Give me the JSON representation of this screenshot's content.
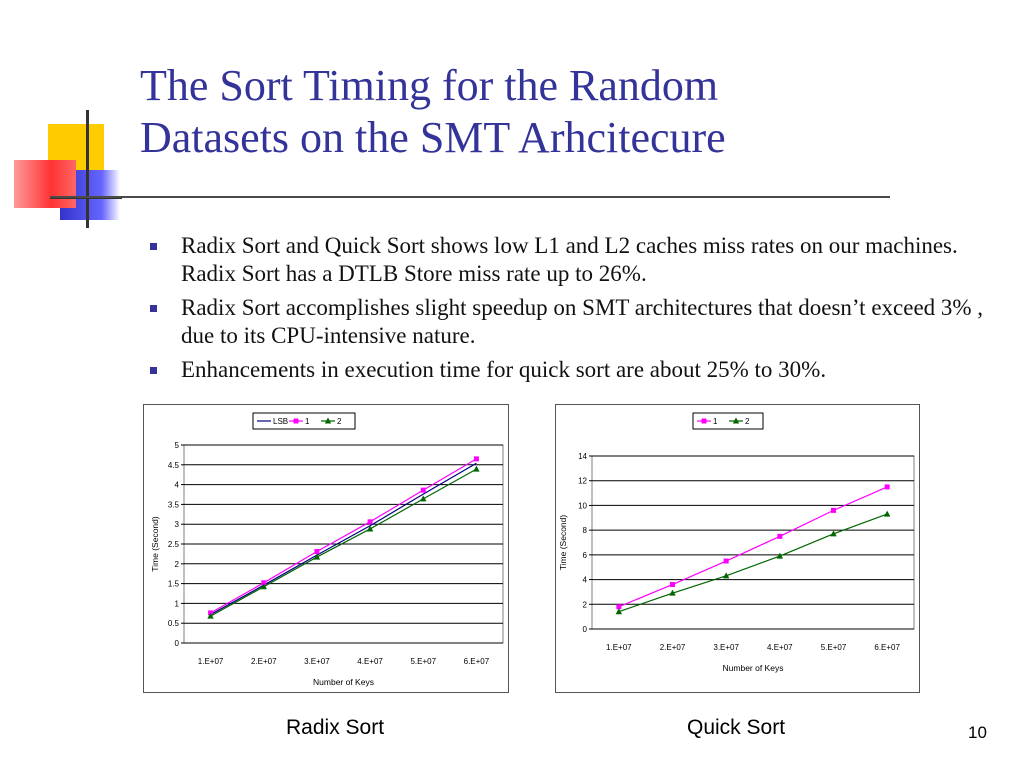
{
  "slide": {
    "title_lines": [
      "The Sort Timing for the Random",
      "Datasets on the SMT Arhcitecure"
    ],
    "bullets": [
      "Radix Sort and Quick Sort shows low L1 and L2 caches miss rates on our machines. Radix Sort has a DTLB Store miss rate up to 26%.",
      "Radix Sort accomplishes slight speedup on SMT architectures that doesn’t exceed 3% , due to its CPU-intensive nature.",
      "Enhancements in execution time for quick sort are about 25% to 30%."
    ],
    "captions": [
      "Radix Sort",
      "Quick Sort"
    ],
    "slide_number": "10",
    "colors": {
      "title": "#333399",
      "bullet_marker": "#333399",
      "deco_yellow": "#ffcc00",
      "deco_blue": "#3333cc",
      "deco_red": "#ff3333"
    }
  },
  "chart_data": [
    {
      "type": "line",
      "caption": "Radix Sort",
      "categories": [
        "1.E+07",
        "2.E+07",
        "3.E+07",
        "4.E+07",
        "5.E+07",
        "6.E+07"
      ],
      "series": [
        {
          "name": "LSB",
          "values": [
            0.72,
            1.46,
            2.22,
            2.96,
            3.76,
            4.54
          ],
          "color": "#000080",
          "marker": "none"
        },
        {
          "name": "1",
          "values": [
            0.76,
            1.52,
            2.31,
            3.06,
            3.86,
            4.65
          ],
          "color": "#ff00ff",
          "marker": "square"
        },
        {
          "name": "2",
          "values": [
            0.68,
            1.42,
            2.17,
            2.88,
            3.64,
            4.39
          ],
          "color": "#006600",
          "marker": "triangle"
        }
      ],
      "ylim": [
        0,
        5
      ],
      "yticks": [
        "0",
        "0.5",
        "1",
        "1.5",
        "2",
        "2.5",
        "3",
        "3.5",
        "4",
        "4.5",
        "5"
      ],
      "xlabel": "Number of Keys",
      "ylabel": "Time (Second)",
      "legend": "top-center",
      "grid": "horizontal"
    },
    {
      "type": "line",
      "caption": "Quick Sort",
      "categories": [
        "1.E+07",
        "2.E+07",
        "3.E+07",
        "4.E+07",
        "5.E+07",
        "6.E+07"
      ],
      "series": [
        {
          "name": "1",
          "values": [
            1.8,
            3.6,
            5.5,
            7.5,
            9.6,
            11.5
          ],
          "color": "#ff00ff",
          "marker": "square"
        },
        {
          "name": "2",
          "values": [
            1.4,
            2.9,
            4.3,
            5.9,
            7.7,
            9.3
          ],
          "color": "#006600",
          "marker": "triangle"
        }
      ],
      "ylim": [
        0,
        14
      ],
      "yticks": [
        "0",
        "2",
        "4",
        "6",
        "8",
        "10",
        "12",
        "14"
      ],
      "xlabel": "Number of Keys",
      "ylabel": "Time (Second)",
      "legend": "top-center",
      "grid": "horizontal"
    }
  ]
}
